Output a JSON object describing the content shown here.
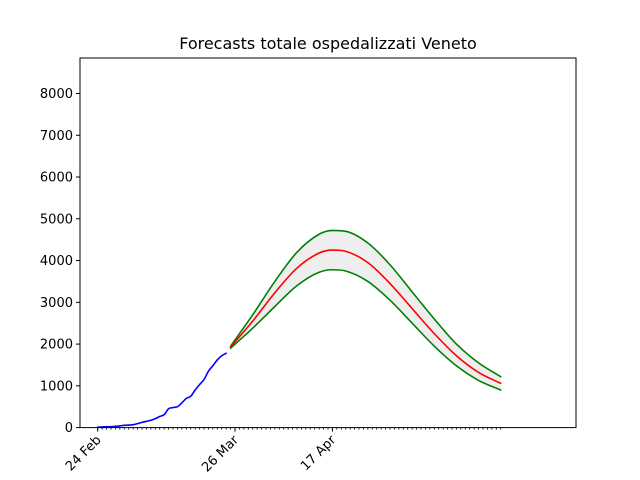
{
  "chart_data": {
    "type": "line",
    "title": "Forecasts totale ospedalizzati Veneto",
    "xlabel": "",
    "ylabel": "",
    "ylim": [
      0,
      8850
    ],
    "xlim": [
      "2020-02-20",
      "2020-06-11"
    ],
    "yticks": [
      0,
      1000,
      2000,
      3000,
      4000,
      5000,
      6000,
      7000,
      8000
    ],
    "xticks": [
      {
        "date": "2020-02-24",
        "label": "24 Feb"
      },
      {
        "date": "2020-03-26",
        "label": "26 Mar"
      },
      {
        "date": "2020-04-17",
        "label": "17 Apr"
      }
    ],
    "minor_ticks": "daily",
    "grid": false,
    "legend": "none",
    "band": {
      "between": [
        "upper",
        "lower"
      ],
      "color": "#eeeeee"
    },
    "series": [
      {
        "id": "observed",
        "color": "#0000ff",
        "points": [
          [
            "2020-02-24",
            10
          ],
          [
            "2020-02-25",
            15
          ],
          [
            "2020-02-26",
            18
          ],
          [
            "2020-02-27",
            22
          ],
          [
            "2020-02-28",
            30
          ],
          [
            "2020-02-29",
            40
          ],
          [
            "2020-03-01",
            55
          ],
          [
            "2020-03-02",
            60
          ],
          [
            "2020-03-03",
            70
          ],
          [
            "2020-03-04",
            95
          ],
          [
            "2020-03-05",
            125
          ],
          [
            "2020-03-06",
            150
          ],
          [
            "2020-03-07",
            175
          ],
          [
            "2020-03-08",
            215
          ],
          [
            "2020-03-09",
            265
          ],
          [
            "2020-03-10",
            310
          ],
          [
            "2020-03-11",
            450
          ],
          [
            "2020-03-12",
            480
          ],
          [
            "2020-03-13",
            500
          ],
          [
            "2020-03-14",
            590
          ],
          [
            "2020-03-15",
            700
          ],
          [
            "2020-03-16",
            750
          ],
          [
            "2020-03-17",
            900
          ],
          [
            "2020-03-18",
            1030
          ],
          [
            "2020-03-19",
            1150
          ],
          [
            "2020-03-20",
            1350
          ],
          [
            "2020-03-21",
            1480
          ],
          [
            "2020-03-22",
            1620
          ],
          [
            "2020-03-23",
            1720
          ],
          [
            "2020-03-24",
            1780
          ]
        ]
      },
      {
        "id": "upper",
        "color": "#008000",
        "points": [
          [
            "2020-03-25",
            1950
          ],
          [
            "2020-03-30",
            2700
          ],
          [
            "2020-04-04",
            3500
          ],
          [
            "2020-04-09",
            4200
          ],
          [
            "2020-04-14",
            4630
          ],
          [
            "2020-04-17",
            4720
          ],
          [
            "2020-04-20",
            4700
          ],
          [
            "2020-04-25",
            4420
          ],
          [
            "2020-04-30",
            3900
          ],
          [
            "2020-05-05",
            3250
          ],
          [
            "2020-05-10",
            2600
          ],
          [
            "2020-05-15",
            2000
          ],
          [
            "2020-05-20",
            1550
          ],
          [
            "2020-05-25",
            1220
          ]
        ]
      },
      {
        "id": "central",
        "color": "#ff0000",
        "points": [
          [
            "2020-03-25",
            1930
          ],
          [
            "2020-03-30",
            2550
          ],
          [
            "2020-04-04",
            3230
          ],
          [
            "2020-04-09",
            3820
          ],
          [
            "2020-04-14",
            4180
          ],
          [
            "2020-04-17",
            4250
          ],
          [
            "2020-04-20",
            4220
          ],
          [
            "2020-04-25",
            3950
          ],
          [
            "2020-04-30",
            3450
          ],
          [
            "2020-05-05",
            2850
          ],
          [
            "2020-05-10",
            2250
          ],
          [
            "2020-05-15",
            1720
          ],
          [
            "2020-05-20",
            1320
          ],
          [
            "2020-05-25",
            1060
          ]
        ]
      },
      {
        "id": "lower",
        "color": "#008000",
        "points": [
          [
            "2020-03-25",
            1900
          ],
          [
            "2020-03-30",
            2380
          ],
          [
            "2020-04-04",
            2900
          ],
          [
            "2020-04-09",
            3400
          ],
          [
            "2020-04-14",
            3720
          ],
          [
            "2020-04-17",
            3780
          ],
          [
            "2020-04-20",
            3750
          ],
          [
            "2020-04-25",
            3500
          ],
          [
            "2020-04-30",
            3050
          ],
          [
            "2020-05-05",
            2500
          ],
          [
            "2020-05-10",
            1950
          ],
          [
            "2020-05-15",
            1480
          ],
          [
            "2020-05-20",
            1130
          ],
          [
            "2020-05-25",
            900
          ]
        ]
      }
    ]
  }
}
